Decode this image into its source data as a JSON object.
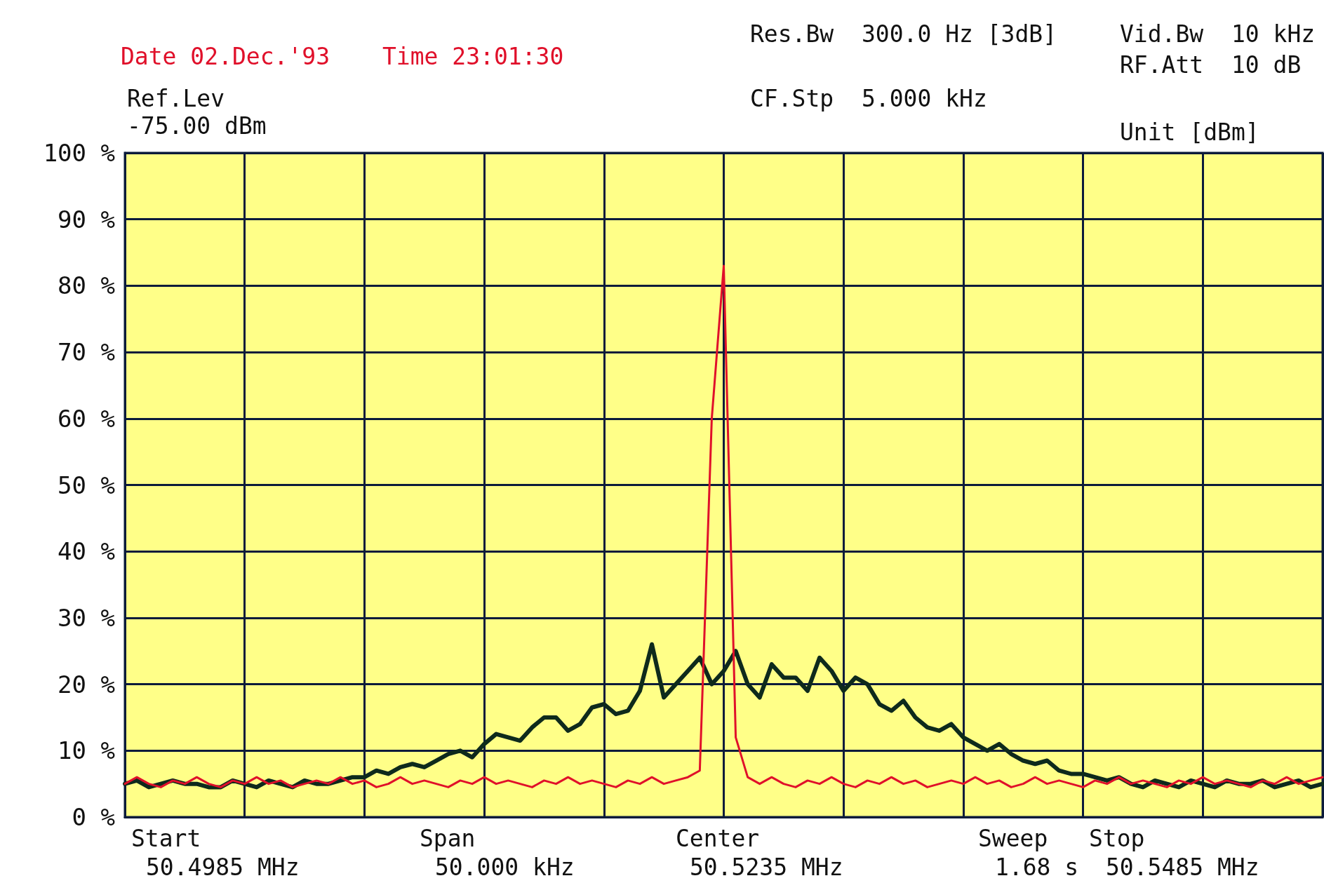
{
  "chart_data": {
    "type": "line",
    "categories": [
      null,
      null,
      null,
      null,
      null,
      null,
      null,
      null,
      null,
      null,
      null,
      null,
      null,
      null,
      null,
      null,
      null,
      null,
      null,
      null,
      null,
      null,
      null,
      null,
      null,
      null,
      null,
      null,
      null,
      null,
      null,
      null,
      null,
      null,
      null,
      null,
      null,
      null,
      null,
      null,
      null,
      null,
      null,
      null,
      null,
      null,
      null,
      null,
      null,
      null,
      null,
      null,
      null,
      null,
      null,
      null,
      null,
      null,
      null,
      null,
      null,
      null,
      null,
      null,
      null,
      null,
      null,
      null,
      null,
      null,
      null,
      null,
      null,
      null,
      null,
      null,
      null,
      null,
      null,
      null,
      null,
      null,
      null,
      null,
      null,
      null,
      null,
      null,
      null,
      null,
      null,
      null,
      null,
      null,
      null,
      null,
      null,
      null,
      null,
      null,
      null
    ],
    "ylim": [
      0,
      100
    ],
    "yticks": [
      {
        "value": 0,
        "label": "0 %"
      },
      {
        "value": 10,
        "label": "10 %"
      },
      {
        "value": 20,
        "label": "20 %"
      },
      {
        "value": 30,
        "label": "30 %"
      },
      {
        "value": 40,
        "label": "40 %"
      },
      {
        "value": 50,
        "label": "50 %"
      },
      {
        "value": 60,
        "label": "60 %"
      },
      {
        "value": 70,
        "label": "70 %"
      },
      {
        "value": 80,
        "label": "80 %"
      },
      {
        "value": 90,
        "label": "90 %"
      },
      {
        "value": 100,
        "label": "100 %"
      }
    ],
    "tick_labels": "y",
    "grid": true,
    "marker": "none",
    "line_style": "solid",
    "series": [
      {
        "color": "#0e2a1c",
        "values": [
          5,
          5.5,
          4.5,
          5,
          5.5,
          5,
          5,
          4.5,
          4.5,
          5.5,
          5,
          4.5,
          5.5,
          5,
          4.5,
          5.5,
          5,
          5,
          5.5,
          6,
          6,
          7,
          6.5,
          7.5,
          8,
          7.5,
          8.5,
          9.5,
          10,
          9,
          11,
          12.5,
          12,
          11.5,
          13.5,
          15,
          15,
          13,
          14,
          16.5,
          17,
          15.5,
          16,
          19,
          26,
          18,
          20,
          22,
          24,
          20,
          22,
          25,
          20,
          18,
          23,
          21,
          21,
          19,
          24,
          22,
          19,
          21,
          20,
          17,
          16,
          17.5,
          15,
          13.5,
          13,
          14,
          12,
          11,
          10,
          11,
          9.5,
          8.5,
          8,
          8.5,
          7,
          6.5,
          6.5,
          6,
          5.5,
          6,
          5,
          4.5,
          5.5,
          5,
          4.5,
          5.5,
          5,
          4.5,
          5.5,
          5,
          5,
          5.5,
          4.5,
          5,
          5.5,
          4.5,
          5
        ]
      },
      {
        "color": "#e0102a",
        "values": [
          5,
          6,
          5,
          4.5,
          5.5,
          5,
          6,
          5,
          4.5,
          5.5,
          5,
          6,
          5,
          5.5,
          4.5,
          5,
          5.5,
          5,
          6,
          5,
          5.5,
          4.5,
          5,
          6,
          5,
          5.5,
          5,
          4.5,
          5.5,
          5,
          6,
          5,
          5.5,
          5,
          4.5,
          5.5,
          5,
          6,
          5,
          5.5,
          5,
          4.5,
          5.5,
          5,
          6,
          5,
          5.5,
          6,
          7,
          60,
          83,
          12,
          6,
          5,
          6,
          5,
          4.5,
          5.5,
          5,
          6,
          5,
          4.5,
          5.5,
          5,
          6,
          5,
          5.5,
          4.5,
          5,
          5.5,
          5,
          6,
          5,
          5.5,
          4.5,
          5,
          6,
          5,
          5.5,
          5,
          4.5,
          5.5,
          5,
          6,
          5,
          5.5,
          5,
          4.5,
          5.5,
          5,
          6,
          5,
          5.5,
          5,
          4.5,
          5.5,
          5,
          6,
          5,
          5.5,
          6
        ]
      }
    ],
    "annotations": [
      "Date 02.Dec.'93",
      "Time 23:01:30",
      "Ref.Lev",
      "-75.00 dBm",
      "Res.Bw  300.0 Hz [3dB]",
      "CF.Stp  5.000 kHz",
      "Vid.Bw  10 kHz",
      "RF.Att  10 dB",
      "Unit [dBm]",
      "Start",
      "50.4985 MHz",
      "Span",
      "50.000 kHz",
      "Center",
      "50.5235 MHz",
      "Sweep",
      "1.68 s",
      "Stop",
      "50.5485 MHz"
    ]
  }
}
